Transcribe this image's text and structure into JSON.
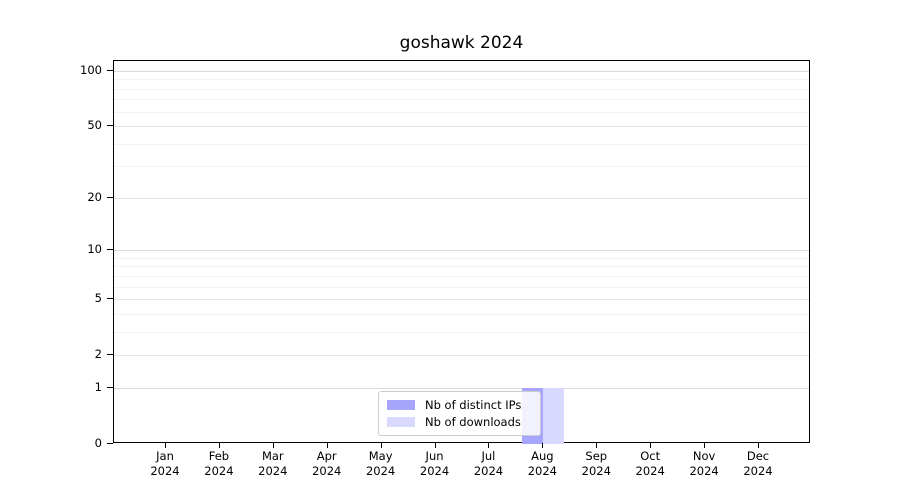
{
  "title": "goshawk 2024",
  "legend": {
    "items": [
      {
        "label": "Nb of distinct IPs",
        "color": "#a6a6ff"
      },
      {
        "label": "Nb of downloads",
        "color": "#d9d9ff"
      }
    ]
  },
  "chart_data": {
    "type": "bar",
    "title": "goshawk 2024",
    "categories": [
      "Jan 2024",
      "Feb 2024",
      "Mar 2024",
      "Apr 2024",
      "May 2024",
      "Jun 2024",
      "Jul 2024",
      "Aug 2024",
      "Sep 2024",
      "Oct 2024",
      "Nov 2024",
      "Dec 2024"
    ],
    "series": [
      {
        "name": "Nb of distinct IPs",
        "color": "#a6a6ff",
        "values": [
          0,
          0,
          0,
          0,
          0,
          0,
          0,
          1,
          0,
          0,
          0,
          0
        ]
      },
      {
        "name": "Nb of downloads",
        "color": "#d9d9ff",
        "values": [
          0,
          0,
          0,
          0,
          0,
          0,
          0,
          1,
          0,
          0,
          0,
          0
        ]
      }
    ],
    "xlabel": "",
    "ylabel": "",
    "y_scale": "log1p",
    "y_ticks": [
      0,
      1,
      2,
      5,
      10,
      20,
      50,
      100
    ],
    "y_minor_ticks": [
      3,
      4,
      6,
      7,
      8,
      9,
      30,
      40,
      60,
      70,
      80,
      90
    ],
    "ylim": [
      0,
      113
    ],
    "grid": true,
    "legend_position": "lower center"
  }
}
